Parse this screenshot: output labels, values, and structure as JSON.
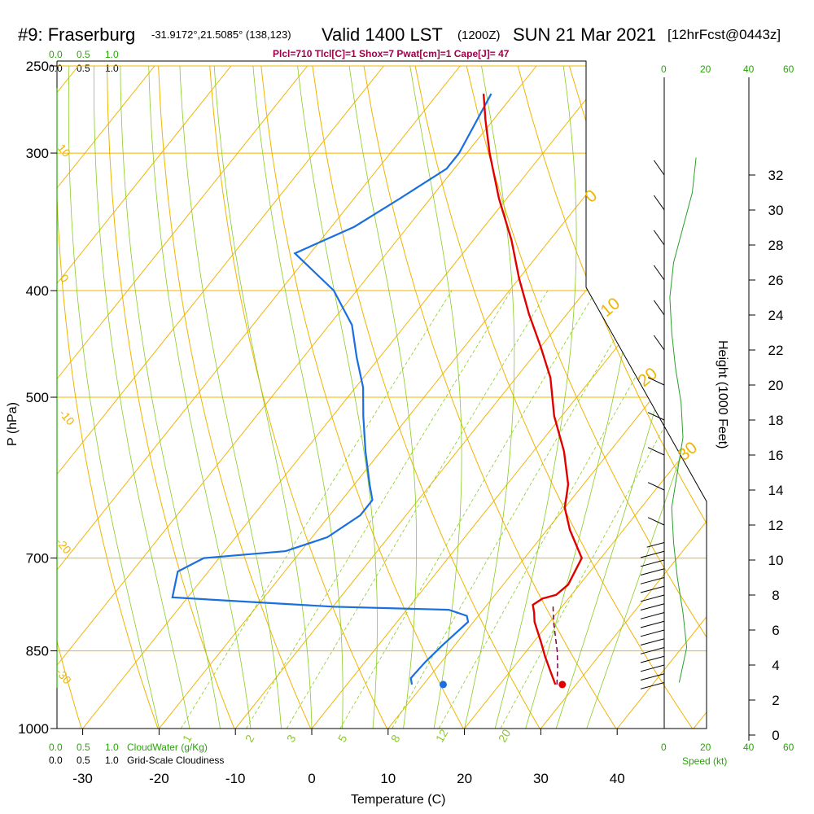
{
  "header": {
    "station": "#9: Fraserburg",
    "coords": "-31.9172°,21.5085° (138,123)",
    "valid_main": "Valid 1400 LST",
    "valid_z": "(1200Z)",
    "date": "SUN 21 Mar 2021",
    "forecast": "[12hrFcst@0443z]",
    "indices": "Plcl=710 Tlcl[C]=1 Shox=7 Pwat[cm]=1 Cape[J]= 47"
  },
  "colors": {
    "isobar": "#f0b400",
    "isotherm": "#f0b400",
    "dry_adiabat": "#f0b400",
    "moist_adiabat": "#88cc22",
    "mixing_ratio": "#88cc22",
    "temperature": "#e00000",
    "dewpoint": "#1a6fe0",
    "parcel": "#7a0040",
    "wind_profile": "#2aa02a",
    "green_text": "#22aa00",
    "indices_text": "#a0004a"
  },
  "left_scale": {
    "cloudwater_ticks": [
      "0.0",
      "0.5",
      "1.0"
    ],
    "cloudiness_ticks": [
      "0.0",
      "0.5",
      "1.0"
    ],
    "cloudwater_label": "CloudWater (g/Kg)",
    "cloudiness_label": "Grid-Scale Cloudiness"
  },
  "wind_scale": {
    "ticks": [
      "0",
      "20",
      "40",
      "60"
    ],
    "label": "Speed (kt)"
  },
  "chart_data": {
    "type": "line",
    "subtype": "skew-T log-P",
    "xlabel": "Temperature (C)",
    "ylabel": "P (hPa)",
    "y2label": "Height (1000 Feet)",
    "x_ticks": [
      -30,
      -20,
      -10,
      0,
      10,
      20,
      30,
      40
    ],
    "p_ticks": [
      250,
      300,
      400,
      500,
      700,
      850,
      1000
    ],
    "height_ticks": [
      0,
      2,
      4,
      6,
      8,
      10,
      12,
      14,
      16,
      18,
      20,
      22,
      24,
      26,
      28,
      30,
      32
    ],
    "isotherm_labels": [
      "0",
      "10",
      "20",
      "30"
    ],
    "dry_adiabat_labels": [
      "10",
      "0",
      "-10",
      "-20",
      "-30"
    ],
    "mixing_ratio_labels": [
      "1",
      "2",
      "3",
      "5",
      "8",
      "12",
      "20"
    ],
    "temperature": {
      "name": "Temperature",
      "p": [
        912,
        890,
        860,
        835,
        800,
        785,
        772,
        762,
        756,
        740,
        700,
        660,
        630,
        600,
        560,
        520,
        480,
        450,
        420,
        390,
        360,
        330,
        300,
        280,
        265
      ],
      "t": [
        27.3,
        25.5,
        23,
        21,
        18,
        17,
        16,
        16.6,
        18,
        18.5,
        17.5,
        13,
        10,
        8,
        4,
        -1,
        -5.5,
        -10,
        -15,
        -20,
        -25,
        -31,
        -37,
        -41,
        -44
      ]
    },
    "dewpoint": {
      "name": "Dewpoint",
      "p": [
        912,
        900,
        870,
        840,
        800,
        790,
        780,
        775,
        760,
        720,
        700,
        690,
        670,
        640,
        620,
        600,
        560,
        520,
        490,
        460,
        430,
        400,
        370,
        350,
        330,
        310,
        300,
        265
      ],
      "td": [
        8.5,
        7.7,
        7.9,
        8.4,
        9.3,
        8.5,
        5.5,
        -10,
        -32,
        -34,
        -32,
        -22,
        -18,
        -16,
        -16,
        -18,
        -22,
        -26,
        -29,
        -33,
        -37,
        -43,
        -52,
        -47,
        -44,
        -41,
        -41,
        -43
      ]
    },
    "parcel": {
      "p": [
        912,
        880,
        850,
        800,
        770
      ],
      "t": [
        27.5,
        25.8,
        24,
        20.5,
        18.5
      ]
    },
    "surface": {
      "p": 912,
      "t": 28.2,
      "td": 12.6
    },
    "wind_profile": {
      "height_kft": [
        33,
        31,
        29,
        27,
        25,
        23,
        21,
        19,
        17,
        15,
        13,
        11,
        9,
        7,
        5,
        3
      ],
      "speed_kt": [
        17,
        15,
        10,
        5,
        3,
        4,
        6,
        9,
        10,
        7,
        4,
        5,
        7,
        10,
        12,
        8
      ]
    }
  }
}
